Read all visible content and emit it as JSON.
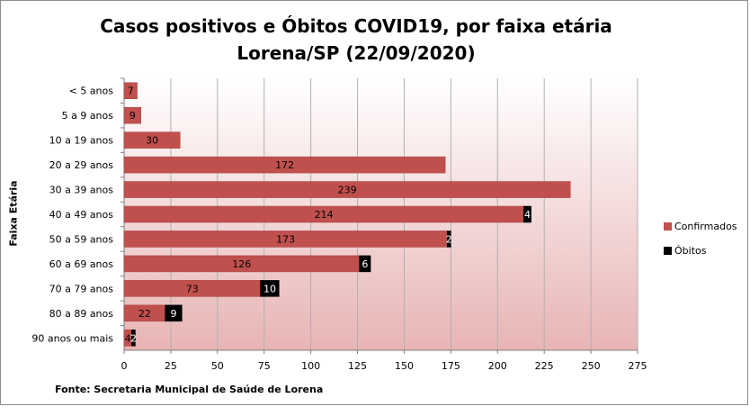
{
  "chart": {
    "title_line1": "Casos positivos e Óbitos COVID19, por faixa etária",
    "title_line2": "Lorena/SP (22/09/2020)",
    "ylabel": "Faixa Etária",
    "source": "Fonte: Secretaria Municipal  de Saúde de Lorena"
  },
  "chart_data": {
    "type": "bar",
    "orientation": "horizontal",
    "stacked": true,
    "title": "Casos positivos e Óbitos COVID19, por faixa etária Lorena/SP (22/09/2020)",
    "xlabel": "",
    "ylabel": "Faixa Etária",
    "xlim": [
      0,
      275
    ],
    "x_ticks": [
      0,
      25,
      50,
      75,
      100,
      125,
      150,
      175,
      200,
      225,
      250,
      275
    ],
    "grid": true,
    "legend_position": "right",
    "categories": [
      "< 5 anos",
      "5 a 9 anos",
      "10 a 19 anos",
      "20 a 29 anos",
      "30 a 39 anos",
      "40 a 49 anos",
      "50 a 59 anos",
      "60 a 69 anos",
      "70 a 79 anos",
      "80 a 89 anos",
      "90 anos ou mais"
    ],
    "series": [
      {
        "name": "Confirmados",
        "color": "#c0504d",
        "values": [
          7,
          9,
          30,
          172,
          239,
          214,
          173,
          126,
          73,
          22,
          4
        ]
      },
      {
        "name": "Óbitos",
        "color": "#000000",
        "values": [
          0,
          0,
          0,
          0,
          0,
          4,
          2,
          6,
          10,
          9,
          2
        ]
      }
    ]
  }
}
